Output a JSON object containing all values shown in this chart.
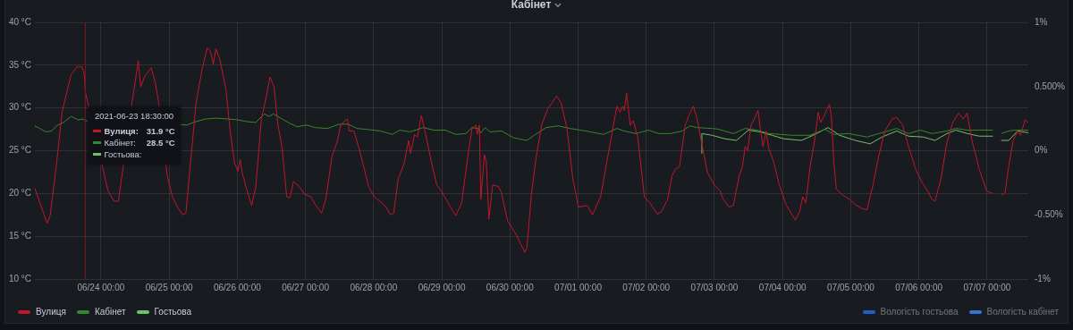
{
  "chart_data": {
    "type": "line",
    "title": "Кабінет",
    "xlim": [
      "2021-06-23T00:45",
      "2021-07-07T14:30"
    ],
    "xticks": [
      {
        "value": "2021-06-24",
        "label": "06/24 00:00"
      },
      {
        "value": "2021-06-25",
        "label": "06/25 00:00"
      },
      {
        "value": "2021-06-26",
        "label": "06/26 00:00"
      },
      {
        "value": "2021-06-27",
        "label": "06/27 00:00"
      },
      {
        "value": "2021-06-28",
        "label": "06/28 00:00"
      },
      {
        "value": "2021-06-29",
        "label": "06/29 00:00"
      },
      {
        "value": "2021-06-30",
        "label": "06/30 00:00"
      },
      {
        "value": "2021-07-01",
        "label": "07/01 00:00"
      },
      {
        "value": "2021-07-02",
        "label": "07/02 00:00"
      },
      {
        "value": "2021-07-03",
        "label": "07/03 00:00"
      },
      {
        "value": "2021-07-04",
        "label": "07/04 00:00"
      },
      {
        "value": "2021-07-05",
        "label": "07/05 00:00"
      },
      {
        "value": "2021-07-06",
        "label": "07/06 00:00"
      },
      {
        "value": "2021-07-07",
        "label": "07/07 00:00"
      }
    ],
    "ylim": [
      10,
      40
    ],
    "yticks": [
      {
        "value": 10,
        "label": "10 °C"
      },
      {
        "value": 15,
        "label": "15 °C"
      },
      {
        "value": 20,
        "label": "20 °C"
      },
      {
        "value": 25,
        "label": "25 °C"
      },
      {
        "value": 30,
        "label": "30 °C"
      },
      {
        "value": 35,
        "label": "35 °C"
      },
      {
        "value": 40,
        "label": "40 °C"
      }
    ],
    "y2lim": [
      -1,
      1
    ],
    "y2ticks": [
      {
        "value": -1,
        "label": "-1%"
      },
      {
        "value": -0.5,
        "label": "-0.50%"
      },
      {
        "value": 0,
        "label": "0%"
      },
      {
        "value": 0.5,
        "label": "0.500%"
      },
      {
        "value": 1,
        "label": "1%"
      }
    ],
    "grid": true,
    "legend": "bottom",
    "marker": "none",
    "line_style": "solid",
    "ref_lines": [
      {
        "axis": "x",
        "value": "2021-06-23T18:30",
        "color": "#7a1a22"
      }
    ],
    "annotations": [
      "2021-06-23 18:30:00",
      "Вулиця:",
      "31.9 °C",
      "Кабінет:",
      "28.5 °C",
      "Гостьова:"
    ],
    "series": [
      {
        "name": "Вулиця",
        "color": "#c4162a",
        "x": [
          "2021-06-23T00:45",
          "2021-06-23T05:05",
          "2021-06-23T06:10",
          "2021-06-23T08:15",
          "2021-06-23T10:20",
          "2021-06-23T13:30",
          "2021-06-23T15:35",
          "2021-06-23T17:20",
          "2021-06-23T18:10",
          "2021-06-23T18:30",
          "2021-06-24T02:30",
          "2021-06-24T04:35",
          "2021-06-24T06:10",
          "2021-06-24T11:20",
          "2021-06-24T13:10",
          "2021-06-24T14:00",
          "2021-06-24T15:30",
          "2021-06-24T17:40",
          "2021-06-24T19:10",
          "2021-06-24T20:15",
          "2021-06-24T23:20",
          "2021-06-25T01:10",
          "2021-06-25T03:20",
          "2021-06-25T04:50",
          "2021-06-25T05:55",
          "2021-06-25T08:00",
          "2021-06-25T09:30",
          "2021-06-25T11:40",
          "2021-06-25T13:25",
          "2021-06-25T14:35",
          "2021-06-25T15:35",
          "2021-06-25T16:30",
          "2021-06-25T17:55",
          "2021-06-25T20:00",
          "2021-06-25T21:30",
          "2021-06-25T23:05",
          "2021-06-26T00:15",
          "2021-06-26T01:00",
          "2021-06-26T01:45",
          "2021-06-26T03:20",
          "2021-06-26T05:05",
          "2021-06-26T06:30",
          "2021-06-26T08:30",
          "2021-06-26T10:05",
          "2021-06-26T11:30",
          "2021-06-26T12:55",
          "2021-06-26T14:20",
          "2021-06-26T15:50",
          "2021-06-26T17:25",
          "2021-06-26T18:30",
          "2021-06-26T19:50",
          "2021-06-26T22:10",
          "2021-06-26T23:40",
          "2021-06-27T02:00",
          "2021-06-27T03:30",
          "2021-06-27T05:40",
          "2021-06-27T07:10",
          "2021-06-27T09:20",
          "2021-06-27T11:20",
          "2021-06-27T12:25",
          "2021-06-27T14:00",
          "2021-06-27T14:45",
          "2021-06-27T15:30",
          "2021-06-27T17:05",
          "2021-06-27T18:40",
          "2021-06-27T20:15",
          "2021-06-27T22:20",
          "2021-06-28T00:20",
          "2021-06-28T04:00",
          "2021-06-28T06:00",
          "2021-06-28T07:05",
          "2021-06-28T08:40",
          "2021-06-28T10:45",
          "2021-06-28T12:20",
          "2021-06-28T13:00",
          "2021-06-28T14:25",
          "2021-06-28T15:25",
          "2021-06-28T16:50",
          "2021-06-28T18:05",
          "2021-06-28T20:05",
          "2021-06-28T22:15",
          "2021-06-29T00:15",
          "2021-06-29T02:15",
          "2021-06-29T04:55",
          "2021-06-29T07:00",
          "2021-06-29T09:05",
          "2021-06-29T10:40",
          "2021-06-29T12:00",
          "2021-06-29T12:30",
          "2021-06-29T13:15",
          "2021-06-29T13:45",
          "2021-06-29T15:00",
          "2021-06-29T15:40",
          "2021-06-29T16:35",
          "2021-06-29T17:55",
          "2021-06-29T20:00",
          "2021-06-29T21:05",
          "2021-06-29T23:10",
          "2021-06-30T02:20",
          "2021-06-30T05:15",
          "2021-06-30T06:00",
          "2021-06-30T07:35",
          "2021-06-30T09:10",
          "2021-06-30T11:10",
          "2021-06-30T13:20",
          "2021-06-30T14:50",
          "2021-06-30T16:25",
          "2021-06-30T18:00",
          "2021-06-30T20:05",
          "2021-06-30T22:10",
          "2021-07-01T00:05",
          "2021-07-01T03:15",
          "2021-07-01T05:05",
          "2021-07-01T07:55",
          "2021-07-01T10:00",
          "2021-07-01T12:05",
          "2021-07-01T13:40",
          "2021-07-01T14:45",
          "2021-07-01T15:45",
          "2021-07-01T16:15",
          "2021-07-01T17:05",
          "2021-07-01T18:20",
          "2021-07-01T19:25",
          "2021-07-01T21:00",
          "2021-07-01T23:20",
          "2021-07-02T01:15",
          "2021-07-02T03:50",
          "2021-07-02T05:25",
          "2021-07-02T07:30",
          "2021-07-02T09:05",
          "2021-07-02T10:25",
          "2021-07-02T11:40",
          "2021-07-02T13:45",
          "2021-07-02T15:20",
          "2021-07-02T16:35",
          "2021-07-02T17:55",
          "2021-07-02T19:30",
          "2021-07-02T21:35",
          "2021-07-03T00:00",
          "2021-07-03T02:00",
          "2021-07-03T03:00",
          "2021-07-03T05:05",
          "2021-07-03T06:40",
          "2021-07-03T08:45",
          "2021-07-03T09:50",
          "2021-07-03T10:50",
          "2021-07-03T11:40",
          "2021-07-03T12:55",
          "2021-07-03T14:00",
          "2021-07-03T15:20",
          "2021-07-03T16:15",
          "2021-07-03T17:05",
          "2021-07-03T18:10",
          "2021-07-03T19:10",
          "2021-07-03T20:45",
          "2021-07-03T22:50",
          "2021-07-04T01:20",
          "2021-07-04T04:30",
          "2021-07-04T06:00",
          "2021-07-04T07:05",
          "2021-07-04T08:10",
          "2021-07-04T09:40",
          "2021-07-04T11:15",
          "2021-07-04T12:35",
          "2021-07-04T13:20",
          "2021-07-04T14:35",
          "2021-07-04T15:25",
          "2021-07-04T16:30",
          "2021-07-04T17:10",
          "2021-07-04T18:05",
          "2021-07-04T18:55",
          "2021-07-04T21:10",
          "2021-07-04T23:15",
          "2021-07-05T01:35",
          "2021-07-05T04:10",
          "2021-07-05T05:45",
          "2021-07-05T07:50",
          "2021-07-05T09:55",
          "2021-07-05T12:00",
          "2021-07-05T14:35",
          "2021-07-05T16:10",
          "2021-07-05T18:15",
          "2021-07-05T20:20",
          "2021-07-05T22:55",
          "2021-07-06T00:55",
          "2021-07-06T03:00",
          "2021-07-06T04:35",
          "2021-07-06T05:40",
          "2021-07-06T07:45",
          "2021-07-06T09:50",
          "2021-07-06T11:55",
          "2021-07-06T14:00",
          "2021-07-06T15:35",
          "2021-07-06T16:55",
          "2021-07-06T18:40",
          "2021-07-06T21:15",
          "2021-07-06T23:50",
          "2021-07-07T01:55",
          "2021-07-07T03:30",
          "2021-07-07T05:00",
          "2021-07-07T06:20",
          "2021-07-07T07:35",
          "2021-07-07T09:10",
          "2021-07-07T10:45",
          "2021-07-07T11:50",
          "2021-07-07T13:20",
          "2021-07-07T14:25"
        ],
        "values": [
          20.6,
          16.5,
          17.5,
          23.1,
          29.5,
          33.9,
          34.8,
          34.8,
          33.9,
          31.9,
          20.3,
          19.1,
          19.1,
          31.5,
          35.5,
          32.5,
          33.7,
          34.7,
          32.9,
          30.8,
          22.1,
          19.6,
          18.2,
          17.5,
          17.7,
          25.2,
          30.6,
          34.6,
          37.0,
          36.6,
          35.1,
          36.9,
          35.6,
          32.2,
          27.3,
          23.5,
          22.6,
          24.0,
          22.4,
          20.5,
          18.6,
          20.7,
          28.7,
          31.1,
          33.6,
          32.5,
          28.0,
          25.2,
          19.6,
          19.5,
          21.4,
          20.7,
          19.9,
          19.6,
          18.7,
          17.7,
          19.3,
          24.3,
          26.2,
          28.0,
          28.5,
          28.7,
          27.3,
          27.3,
          25.5,
          23.5,
          20.7,
          19.6,
          18.6,
          17.5,
          17.7,
          21.7,
          23.5,
          26.2,
          24.7,
          26.9,
          26.6,
          29.1,
          27.3,
          24.1,
          21.0,
          20.1,
          18.9,
          17.4,
          18.9,
          24.1,
          27.6,
          28.0,
          26.9,
          28.0,
          19.3,
          24.5,
          23.8,
          17.0,
          21.0,
          20.8,
          20.0,
          16.8,
          15.1,
          13.1,
          13.7,
          20.0,
          24.1,
          28.0,
          29.9,
          30.6,
          31.4,
          30.6,
          27.6,
          21.7,
          18.4,
          18.6,
          17.5,
          19.6,
          23.5,
          27.3,
          30.2,
          29.5,
          30.2,
          29.7,
          31.7,
          28.0,
          28.5,
          26.6,
          19.6,
          18.9,
          17.6,
          17.9,
          19.3,
          22.1,
          22.9,
          23.1,
          28.0,
          29.4,
          30.2,
          28.7,
          25.9,
          22.4,
          21.0,
          20.3,
          19.4,
          18.4,
          18.6,
          22.1,
          23.1,
          25.5,
          25.0,
          28.0,
          28.7,
          29.7,
          27.3,
          25.5,
          27.3,
          25.2,
          23.8,
          21.0,
          18.6,
          16.9,
          17.9,
          19.6,
          18.9,
          23.1,
          26.2,
          29.5,
          28.3,
          29.0,
          29.7,
          30.4,
          29.0,
          23.5,
          20.5,
          19.8,
          19.4,
          18.7,
          18.2,
          18.1,
          21.0,
          24.5,
          27.3,
          28.7,
          28.9,
          28.0,
          25.5,
          22.8,
          21.4,
          20.3,
          19.3,
          19.1,
          21.7,
          25.9,
          28.3,
          29.4,
          28.7,
          29.4,
          26.2,
          22.8,
          20.3,
          20.0,
          null,
          19.8,
          20.1,
          23.1,
          26.2,
          27.3,
          26.8,
          28.6,
          28.3
        ]
      },
      {
        "name": "Кабінет",
        "color": "#37872d",
        "x": [
          "2021-06-23T00:45",
          "2021-06-23T02:30",
          "2021-06-23T04:35",
          "2021-06-23T06:40",
          "2021-06-23T08:45",
          "2021-06-23T10:50",
          "2021-06-23T13:30",
          "2021-06-23T16:05",
          "2021-06-23T17:40",
          "2021-06-23T18:30",
          "2021-06-25T06:25",
          "2021-06-25T08:30",
          "2021-06-25T12:40",
          "2021-06-25T16:50",
          "2021-06-25T21:00",
          "2021-06-26T00:15",
          "2021-06-26T03:20",
          "2021-06-26T06:30",
          "2021-06-26T09:35",
          "2021-06-26T11:10",
          "2021-06-26T12:45",
          "2021-06-26T15:50",
          "2021-06-26T18:30",
          "2021-06-26T21:05",
          "2021-06-27T00:25",
          "2021-06-27T03:30",
          "2021-06-27T07:45",
          "2021-06-27T11:55",
          "2021-06-27T15:00",
          "2021-06-27T18:10",
          "2021-06-27T21:15",
          "2021-06-28T02:25",
          "2021-06-28T06:35",
          "2021-06-28T09:10",
          "2021-06-28T12:50",
          "2021-06-28T17:30",
          "2021-06-28T21:10",
          "2021-06-29T01:15",
          "2021-06-29T04:55",
          "2021-06-29T08:30",
          "2021-06-29T10:40",
          "2021-06-29T12:45",
          "2021-06-29T13:45",
          "2021-06-29T15:20",
          "2021-06-29T16:55",
          "2021-06-29T21:05",
          "2021-06-30T01:20",
          "2021-06-30T06:00",
          "2021-06-30T08:35",
          "2021-06-30T12:45",
          "2021-06-30T17:00",
          "2021-06-30T21:05",
          "2021-07-01T02:45",
          "2021-07-01T09:00",
          "2021-07-01T13:40",
          "2021-07-01T16:15",
          "2021-07-01T20:25",
          "2021-07-02T00:45",
          "2021-07-02T04:25",
          "2021-07-02T08:30",
          "2021-07-02T12:45",
          "2021-07-02T15:20",
          "2021-07-02T17:55",
          "2021-07-02T23:10",
          "2021-07-03T01:30",
          "2021-07-03T06:40",
          "2021-07-03T10:50",
          "2021-07-03T15:00",
          "2021-07-03T19:10",
          "2021-07-03T23:20",
          "2021-07-04T03:25",
          "2021-07-04T09:40",
          "2021-07-04T14:55",
          "2021-07-04T18:05",
          "2021-07-04T23:15",
          "2021-07-05T05:45",
          "2021-07-05T12:00",
          "2021-07-05T16:10",
          "2021-07-05T20:20",
          "2021-07-06T00:25",
          "2021-07-06T04:35",
          "2021-07-06T09:50",
          "2021-07-06T12:55",
          "2021-07-06T17:05",
          "2021-07-06T21:15",
          "2021-07-07T01:55",
          "2021-07-07T03:30",
          "2021-07-07T05:00",
          "2021-07-07T07:35",
          "2021-07-07T09:40",
          "2021-07-07T14:25"
        ],
        "values": [
          27.9,
          27.6,
          27.2,
          27.3,
          28.0,
          28.3,
          29.0,
          28.6,
          28.7,
          28.5,
          28.0,
          28.3,
          28.7,
          28.8,
          28.7,
          28.6,
          28.4,
          28.3,
          29.3,
          29.0,
          29.3,
          28.7,
          28.2,
          27.8,
          28.0,
          27.7,
          27.6,
          28.1,
          28.1,
          27.6,
          27.5,
          27.3,
          26.9,
          27.4,
          27.2,
          27.7,
          27.4,
          27.4,
          26.9,
          27.0,
          27.7,
          27.6,
          27.1,
          27.7,
          27.2,
          27.3,
          26.5,
          26.2,
          26.8,
          27.7,
          27.9,
          27.6,
          27.3,
          26.9,
          27.6,
          27.3,
          27.0,
          27.4,
          27.0,
          27.0,
          27.3,
          27.9,
          27.7,
          27.6,
          27.5,
          27.0,
          27.6,
          27.4,
          27.0,
          26.9,
          26.8,
          26.8,
          27.5,
          26.9,
          27.0,
          26.6,
          27.2,
          27.6,
          27.0,
          27.4,
          27.0,
          27.3,
          27.6,
          27.4,
          27.4,
          27.4,
          null,
          27.0,
          27.3,
          27.4,
          27.4
        ]
      },
      {
        "name": "Гостьова",
        "color": "#73bf69",
        "x": [
          "2021-07-02T19:30",
          "2021-07-02T19:35",
          "2021-07-02T23:10",
          "2021-07-03T03:30",
          "2021-07-03T07:45",
          "2021-07-03T11:55",
          "2021-07-03T16:05",
          "2021-07-03T20:15",
          "2021-07-04T00:20",
          "2021-07-04T06:35",
          "2021-07-04T10:45",
          "2021-07-04T16:00",
          "2021-07-04T20:05",
          "2021-07-05T01:35",
          "2021-07-05T06:50",
          "2021-07-05T11:00",
          "2021-07-05T16:10",
          "2021-07-05T20:20",
          "2021-07-06T01:30",
          "2021-07-06T05:40",
          "2021-07-06T09:50",
          "2021-07-06T12:55",
          "2021-07-06T17:05",
          "2021-07-06T21:15",
          "2021-07-07T01:55",
          "2021-07-07T03:30",
          "2021-07-07T05:00",
          "2021-07-07T07:35",
          "2021-07-07T10:45",
          "2021-07-07T14:25"
        ],
        "values": [
          24.7,
          27.0,
          26.8,
          26.4,
          26.2,
          27.4,
          27.2,
          26.8,
          26.4,
          26.2,
          26.8,
          27.7,
          26.8,
          26.2,
          25.8,
          26.6,
          27.3,
          26.7,
          26.6,
          26.2,
          27.0,
          27.4,
          27.0,
          26.7,
          26.7,
          null,
          26.2,
          26.2,
          27.3,
          27.1
        ]
      },
      {
        "name": "Вологість гостьова",
        "color": "#1f60c4",
        "axis": "y2"
      },
      {
        "name": "Вологість кабінет",
        "color": "#3274d9",
        "axis": "y2"
      }
    ]
  }
}
